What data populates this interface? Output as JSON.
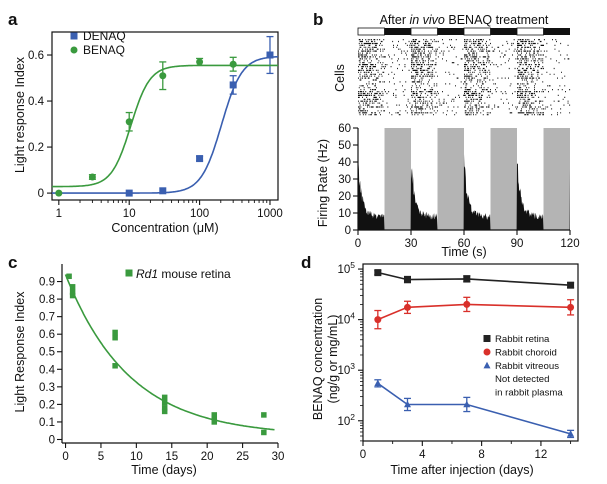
{
  "chart_data": [
    {
      "panel": "a",
      "type": "scatter",
      "xscale": "log",
      "xlabel": "Concentration (μM)",
      "ylabel": "Light response Index",
      "xlim": [
        0.8,
        1300
      ],
      "ylim": [
        -0.03,
        0.7
      ],
      "xticks": [
        1,
        10,
        100,
        1000
      ],
      "xtick_labels": [
        "1",
        "10",
        "100",
        "1000"
      ],
      "yticks": [
        0,
        0.2,
        0.4,
        0.6
      ],
      "ytick_labels": [
        "0",
        "0.2",
        "0.4",
        "0.6"
      ],
      "legend_position": "top-left",
      "series": [
        {
          "name": "DENAQ",
          "color": "#3a5fb0",
          "marker": "square",
          "x": [
            10,
            30,
            100,
            300,
            1000
          ],
          "y": [
            0.0,
            0.01,
            0.15,
            0.47,
            0.6
          ],
          "err": [
            0.005,
            0.005,
            0.01,
            0.04,
            0.08
          ],
          "fit": {
            "bottom": 0.0,
            "top": 0.595,
            "ec50": 205,
            "hill": 3.0
          }
        },
        {
          "name": "BENAQ",
          "color": "#3a9a3e",
          "marker": "circle",
          "x": [
            1,
            3,
            10,
            30,
            100,
            300,
            1000
          ],
          "y": [
            0.0,
            0.07,
            0.31,
            0.51,
            0.57,
            0.56,
            0.0
          ],
          "show": [
            true,
            true,
            true,
            true,
            true,
            true,
            false
          ],
          "err": [
            0.004,
            0.01,
            0.04,
            0.06,
            0.015,
            0.03,
            0
          ],
          "fit": {
            "bottom": 0.028,
            "top": 0.555,
            "ec50": 10.5,
            "hill": 3.2
          }
        }
      ]
    },
    {
      "panel": "b",
      "type": "area",
      "title_parts": [
        "After ",
        "in vivo",
        " BENAQ treatment"
      ],
      "raster_label": "Cells",
      "ylabel": "Firing Rate (Hz)",
      "xlabel": "Time (s)",
      "xlim": [
        0,
        120
      ],
      "ylim": [
        0,
        60
      ],
      "xticks": [
        0,
        30,
        60,
        90,
        120
      ],
      "xtick_labels": [
        "0",
        "30",
        "60",
        "90",
        "120"
      ],
      "yticks": [
        0,
        10,
        20,
        30,
        40,
        50,
        60
      ],
      "ytick_labels": [
        "0",
        "10",
        "20",
        "30",
        "40",
        "50",
        "60"
      ],
      "light_off_intervals": [
        [
          0,
          15
        ],
        [
          30,
          45
        ],
        [
          60,
          75
        ],
        [
          90,
          105
        ]
      ],
      "dark_intervals": [
        [
          15,
          30
        ],
        [
          45,
          60
        ],
        [
          75,
          90
        ],
        [
          105,
          120
        ]
      ],
      "shade_color": "#b4b4b4",
      "peak_rate": 38,
      "baseline_rate": 6
    },
    {
      "panel": "c",
      "type": "scatter",
      "xlabel": "Time (days)",
      "ylabel": "Light Response Index",
      "xlim": [
        -0.5,
        30
      ],
      "ylim": [
        -0.02,
        1.0
      ],
      "xticks": [
        0,
        5,
        10,
        15,
        20,
        25,
        30
      ],
      "xtick_labels": [
        "0",
        "5",
        "10",
        "15",
        "20",
        "25",
        "30"
      ],
      "yticks": [
        0,
        0.1,
        0.2,
        0.3,
        0.4,
        0.5,
        0.6,
        0.7,
        0.8,
        0.9
      ],
      "ytick_labels": [
        "0",
        "0.1",
        "0.2",
        "0.3",
        "0.4",
        "0.5",
        "0.6",
        "0.7",
        "0.8",
        "0.9"
      ],
      "legend_position": "top-right",
      "legend_parts": [
        "Rd1",
        " mouse retina"
      ],
      "series": [
        {
          "name": "Rd1 mouse retina",
          "color": "#3a9a3e",
          "marker": "square",
          "x": [
            0.5,
            1,
            1,
            1,
            7,
            7,
            7,
            14,
            14,
            14,
            14,
            21,
            21,
            21,
            28,
            28
          ],
          "y": [
            0.93,
            0.87,
            0.84,
            0.82,
            0.61,
            0.58,
            0.42,
            0.24,
            0.21,
            0.18,
            0.16,
            0.14,
            0.12,
            0.1,
            0.14,
            0.04
          ],
          "fit": {
            "a": 0.92,
            "k": 0.11,
            "c": 0.02
          }
        }
      ]
    },
    {
      "panel": "d",
      "type": "line",
      "yscale": "log",
      "xlabel": "Time after injection (days)",
      "ylabel_lines": [
        "BENAQ concentration",
        "(ng/g or mg/mL)"
      ],
      "xlim": [
        0,
        14.5
      ],
      "ylim_log10": [
        1.6,
        5.1
      ],
      "xticks": [
        0,
        4,
        8,
        12
      ],
      "xtick_labels": [
        "0",
        "4",
        "8",
        "12"
      ],
      "ytick_exponents": [
        2,
        3,
        4,
        5
      ],
      "ytick_base": "10",
      "legend_position": "right",
      "series": [
        {
          "name": "Rabbit retina",
          "color": "#222222",
          "marker": "square",
          "x": [
            1,
            3,
            7,
            14
          ],
          "y": [
            85000,
            62000,
            64000,
            48000
          ],
          "err_log": [
            0.04,
            0.06,
            0.06,
            0.05
          ]
        },
        {
          "name": "Rabbit choroid",
          "color": "#d9302a",
          "marker": "circle",
          "x": [
            1,
            3,
            7,
            14
          ],
          "y": [
            10000,
            17500,
            20000,
            17500
          ],
          "err_log": [
            0.18,
            0.12,
            0.14,
            0.15
          ]
        },
        {
          "name": "Rabbit vitreous",
          "color": "#3a5fb0",
          "marker": "triangle",
          "x": [
            1,
            3,
            7,
            14
          ],
          "y": [
            550,
            210,
            210,
            55
          ],
          "err_log": [
            0.07,
            0.12,
            0.14,
            0.07
          ]
        }
      ],
      "note_lines": [
        "Not detected",
        "in rabbit plasma"
      ]
    }
  ],
  "panel_letters": [
    "a",
    "b",
    "c",
    "d"
  ]
}
